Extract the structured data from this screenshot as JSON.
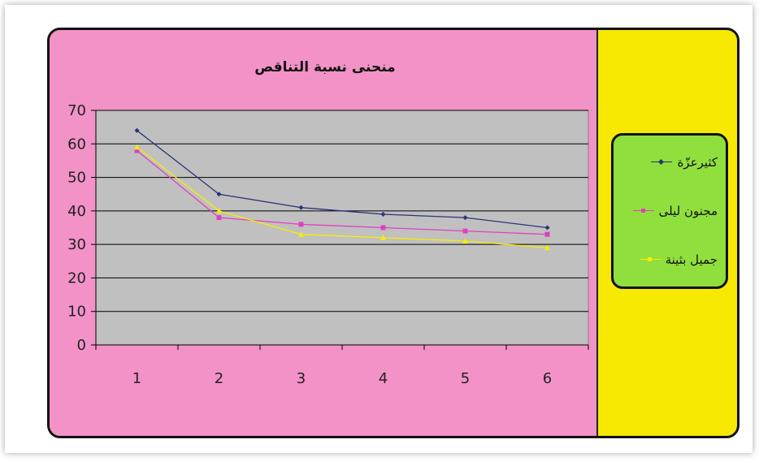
{
  "chart_data": {
    "type": "line",
    "title": "منحنى نسبة التناقص",
    "xlabel": "",
    "ylabel": "",
    "categories": [
      "1",
      "2",
      "3",
      "4",
      "5",
      "6"
    ],
    "ylim": [
      0,
      70
    ],
    "yticks": [
      "0",
      "10",
      "20",
      "30",
      "40",
      "50",
      "60",
      "70"
    ],
    "grid": true,
    "legend": "right",
    "series": [
      {
        "name": "كثيرعزّة",
        "values": [
          64,
          45,
          41,
          39,
          38,
          35
        ],
        "color": "#2a3377",
        "marker": "diamond"
      },
      {
        "name": "مجنون ليلى",
        "values": [
          58,
          38,
          36,
          35,
          34,
          33
        ],
        "color": "#e040c0",
        "marker": "square"
      },
      {
        "name": "جميل بثينة",
        "values": [
          59,
          40,
          33,
          32,
          31,
          29
        ],
        "color": "#f4f000",
        "marker": "triangle"
      }
    ]
  },
  "colors": {
    "chart_background": "#f292c6",
    "legend_area_background": "#f7e800",
    "legend_box_background": "#90df3c",
    "plot_background": "#c0c0c0"
  }
}
